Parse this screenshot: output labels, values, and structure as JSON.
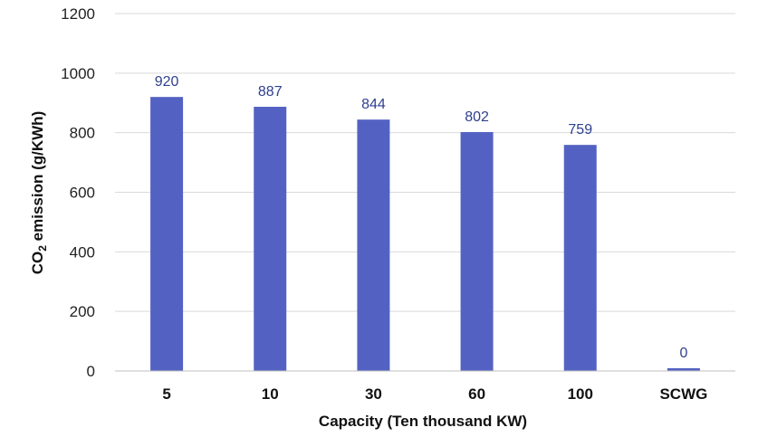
{
  "chart_data": {
    "type": "bar",
    "categories": [
      "5",
      "10",
      "30",
      "60",
      "100",
      "SCWG"
    ],
    "values": [
      920,
      887,
      844,
      802,
      759,
      0
    ],
    "data_labels": [
      "920",
      "887",
      "844",
      "802",
      "759",
      "0"
    ],
    "yticks": [
      "0",
      "200",
      "400",
      "600",
      "800",
      "1000",
      "1200"
    ],
    "ylim": [
      0,
      1200
    ],
    "xlabel": "Capacity (Ten thousand KW)",
    "ylabel_main": "CO",
    "ylabel_sub": "2",
    "ylabel_rest": " emission (g/KWh)",
    "grid": true,
    "colors": {
      "bar": "#5362c2",
      "label": "#2e3f8f"
    }
  }
}
